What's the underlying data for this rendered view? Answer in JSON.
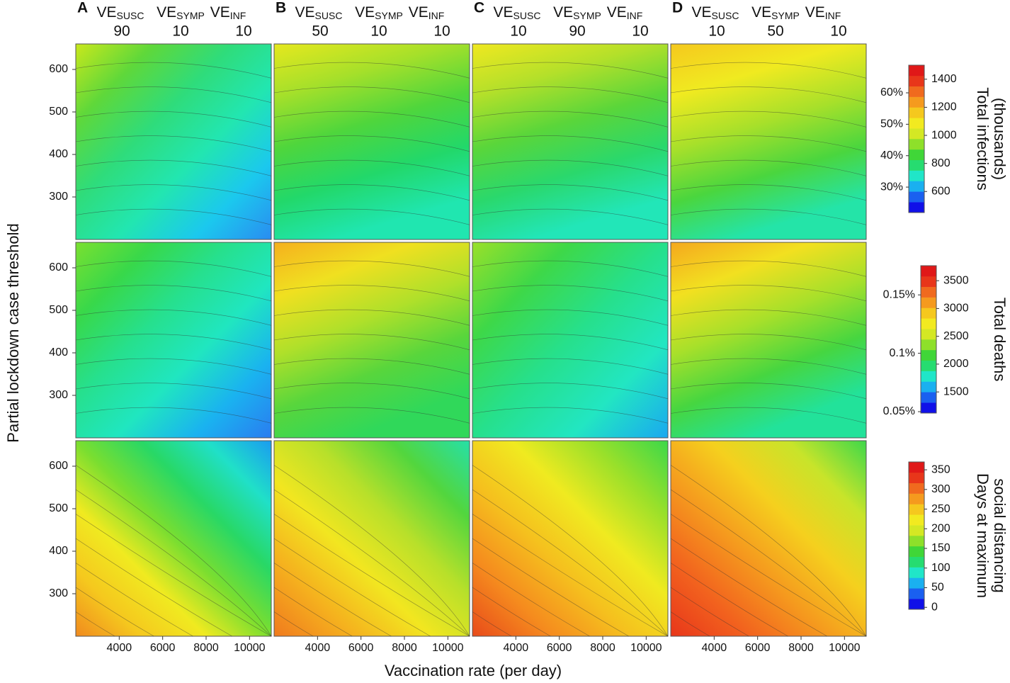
{
  "chart_data": {
    "type": "contour",
    "xlabel": "Vaccination rate (per day)",
    "ylabel": "Partial lockdown case threshold",
    "xlim": [
      2000,
      11000
    ],
    "xticks": [
      4000,
      6000,
      8000,
      10000
    ],
    "ylim": [
      200,
      660
    ],
    "yticks": [
      300,
      400,
      500,
      600
    ],
    "ve_headers": [
      {
        "base": "VE",
        "sub": "SUSC"
      },
      {
        "base": "VE",
        "sub": "SYMP"
      },
      {
        "base": "VE",
        "sub": "INF"
      }
    ],
    "columns": [
      {
        "letter": "A",
        "ve": [
          90,
          10,
          10
        ]
      },
      {
        "letter": "B",
        "ve": [
          50,
          10,
          10
        ]
      },
      {
        "letter": "C",
        "ve": [
          10,
          90,
          10
        ]
      },
      {
        "letter": "D",
        "ve": [
          10,
          50,
          10
        ]
      }
    ],
    "colorbars": [
      {
        "title": [
          "Total infections",
          "(thousands)"
        ],
        "lim": [
          450,
          1500
        ],
        "ticks": [
          600,
          800,
          1000,
          1200,
          1400
        ],
        "pct_lim": [
          21.9,
          68.8
        ],
        "pct_ticks": [
          {
            "value": 30,
            "label": "30%"
          },
          {
            "value": 40,
            "label": "40%"
          },
          {
            "value": 50,
            "label": "50%"
          },
          {
            "value": 60,
            "label": "60%"
          }
        ]
      },
      {
        "title": [
          "Total deaths"
        ],
        "lim": [
          1120,
          3770
        ],
        "ticks": [
          1500,
          2000,
          2500,
          3000,
          3500
        ],
        "pct_lim": [
          0.0488,
          0.175
        ],
        "pct_ticks": [
          {
            "value": 0.05,
            "label": "0.05%"
          },
          {
            "value": 0.1,
            "label": "0.1%"
          },
          {
            "value": 0.15,
            "label": "0.15%"
          }
        ]
      },
      {
        "title": [
          "Days at maximum",
          "social distancing"
        ],
        "lim": [
          -5,
          370
        ],
        "ticks": [
          0,
          50,
          100,
          150,
          200,
          250,
          300,
          350
        ]
      }
    ]
  }
}
